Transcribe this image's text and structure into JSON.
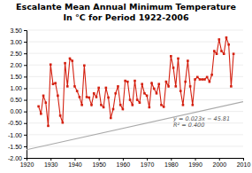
{
  "chart_data": {
    "type": "line",
    "title": "Escalante Mean Annual Minimum Temperature",
    "subtitle": "In °C for Period 1922-2006",
    "x": [
      1925,
      1926,
      1927,
      1928,
      1929,
      1930,
      1931,
      1932,
      1933,
      1934,
      1935,
      1936,
      1937,
      1938,
      1939,
      1940,
      1941,
      1942,
      1943,
      1944,
      1945,
      1946,
      1947,
      1948,
      1949,
      1950,
      1951,
      1952,
      1953,
      1954,
      1955,
      1956,
      1957,
      1958,
      1959,
      1960,
      1961,
      1962,
      1963,
      1964,
      1965,
      1966,
      1967,
      1968,
      1969,
      1970,
      1971,
      1972,
      1973,
      1974,
      1975,
      1976,
      1977,
      1978,
      1979,
      1980,
      1981,
      1982,
      1983,
      1984,
      1985,
      1986,
      1987,
      1988,
      1989,
      1990,
      1991,
      1992,
      1993,
      1994,
      1995,
      1996,
      1997,
      1998,
      1999,
      2000,
      2001,
      2002,
      2003,
      2004,
      2005,
      2006
    ],
    "series": [
      {
        "type": "line",
        "color": "#d42010",
        "marker": "square",
        "values": [
          0.22,
          -0.1,
          0.68,
          0.38,
          -0.62,
          2.02,
          1.18,
          1.22,
          0.68,
          -0.18,
          -0.48,
          2.08,
          1.08,
          2.28,
          2.18,
          1.08,
          0.88,
          0.62,
          0.28,
          1.98,
          0.62,
          0.6,
          0.28,
          0.78,
          0.62,
          1.02,
          0.28,
          0.18,
          1.02,
          0.6,
          -0.28,
          0.1,
          0.78,
          1.08,
          0.28,
          0.1,
          1.32,
          1.28,
          0.5,
          0.28,
          1.32,
          0.5,
          0.38,
          1.18,
          0.78,
          0.68,
          0.18,
          1.22,
          0.98,
          0.78,
          1.18,
          0.28,
          0.2,
          1.28,
          1.08,
          2.38,
          1.88,
          1.08,
          2.28,
          0.88,
          0.28,
          1.28,
          2.18,
          1.08,
          0.28,
          1.38,
          1.48,
          1.38,
          1.38,
          1.38,
          1.48,
          1.28,
          1.58,
          2.6,
          2.48,
          3.1,
          2.6,
          2.48,
          3.18,
          2.88,
          1.08,
          2.48
        ]
      },
      {
        "type": "line",
        "color": "#aaaaaa",
        "x": [
          1920,
          2010
        ],
        "values": [
          -1.65,
          0.42
        ]
      }
    ],
    "annotations": [
      {
        "text": "y = 0.023x − 45.81\nR² = 0.400",
        "x": 1981,
        "y": -0.18
      }
    ],
    "xlim": [
      1920,
      2010
    ],
    "xticks": [
      1920,
      1930,
      1940,
      1950,
      1960,
      1970,
      1980,
      1990,
      2000,
      2010
    ],
    "ylim": [
      -2.0,
      3.5
    ],
    "yticks": [
      {
        "value": 3.5,
        "label": "3.50"
      },
      {
        "value": 3.0,
        "label": "3.00"
      },
      {
        "value": 2.5,
        "label": "2.50"
      },
      {
        "value": 2.0,
        "label": "2.00"
      },
      {
        "value": 1.5,
        "label": "1.50"
      },
      {
        "value": 1.0,
        "label": "1.00"
      },
      {
        "value": 0.5,
        "label": "0.50"
      },
      {
        "value": 0.0,
        "label": "0.00"
      },
      {
        "value": -0.5,
        "label": "-0.50"
      },
      {
        "value": -1.0,
        "label": "-1.00"
      },
      {
        "value": -1.5,
        "label": "-1.50"
      },
      {
        "value": -2.0,
        "label": "-2.00"
      }
    ],
    "grid": true
  }
}
